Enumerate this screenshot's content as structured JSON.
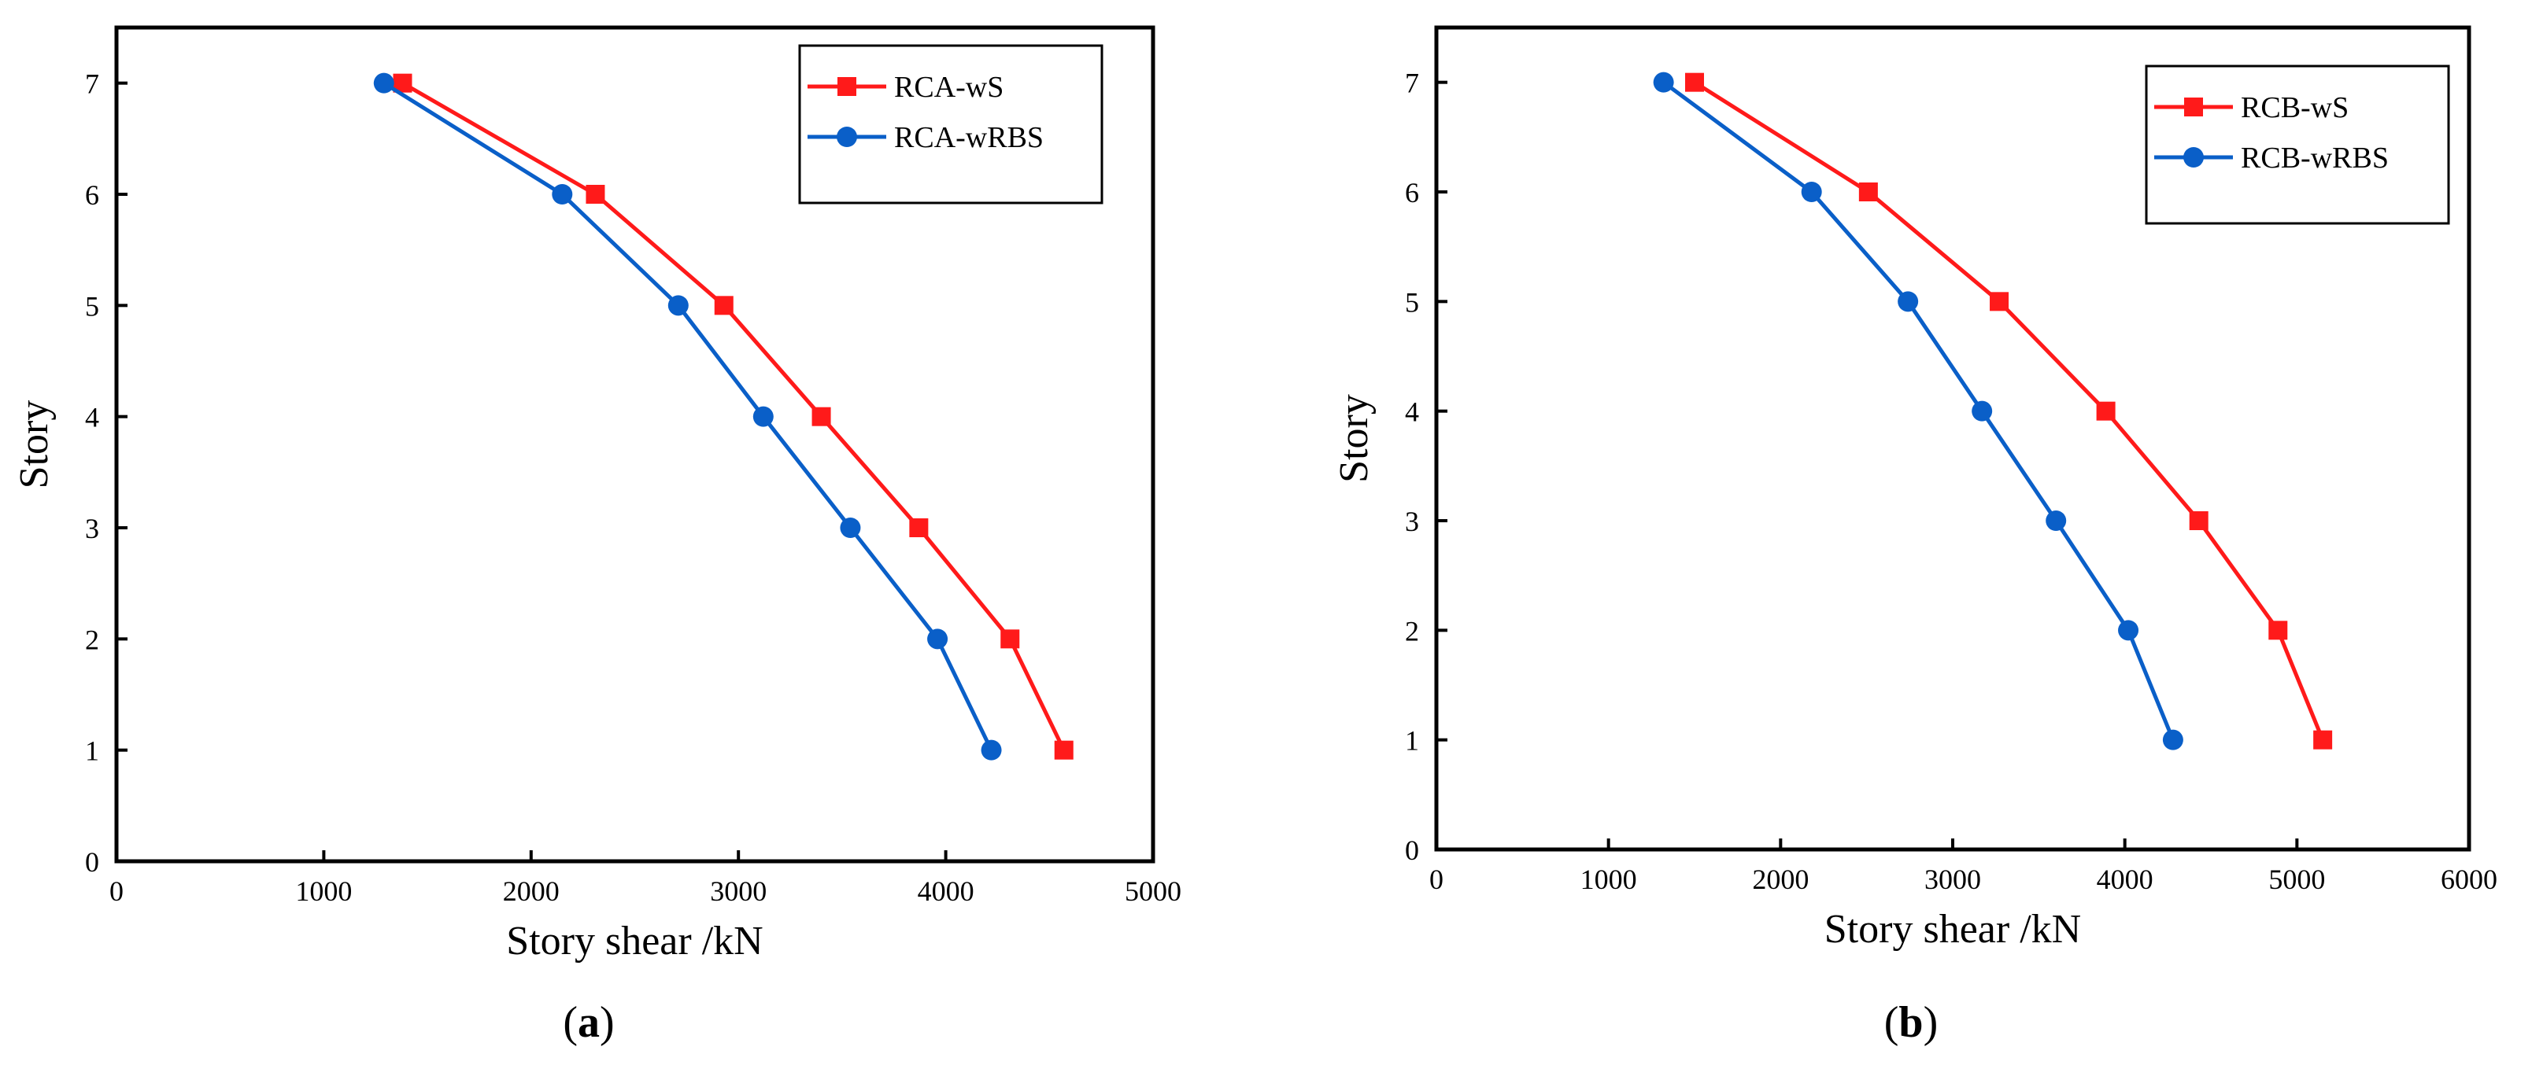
{
  "chart_data": [
    {
      "type": "line",
      "panel_label": "a",
      "xlabel": "Story shear /kN",
      "ylabel": "Story",
      "xlim": [
        0,
        5000
      ],
      "ylim": [
        0,
        7.5
      ],
      "xticks": [
        0,
        1000,
        2000,
        3000,
        4000,
        5000
      ],
      "yticks": [
        0,
        1,
        2,
        3,
        4,
        5,
        6,
        7
      ],
      "legend_position": "top-right",
      "series": [
        {
          "name": "RCA-wS",
          "color": "#ff1a1a",
          "marker": "square",
          "x": [
            4570,
            4310,
            3870,
            3400,
            2930,
            2310,
            1380
          ],
          "y": [
            1,
            2,
            3,
            4,
            5,
            6,
            7
          ]
        },
        {
          "name": "RCA-wRBS",
          "color": "#0a5fc8",
          "marker": "circle",
          "x": [
            4220,
            3960,
            3540,
            3120,
            2710,
            2150,
            1290
          ],
          "y": [
            1,
            2,
            3,
            4,
            5,
            6,
            7
          ]
        }
      ]
    },
    {
      "type": "line",
      "panel_label": "b",
      "xlabel": "Story shear /kN",
      "ylabel": "Story",
      "xlim": [
        0,
        6000
      ],
      "ylim": [
        0,
        7.5
      ],
      "xticks": [
        0,
        1000,
        2000,
        3000,
        4000,
        5000,
        6000
      ],
      "yticks": [
        0,
        1,
        2,
        3,
        4,
        5,
        6,
        7
      ],
      "legend_position": "top-right",
      "series": [
        {
          "name": "RCB-wS",
          "color": "#ff1a1a",
          "marker": "square",
          "x": [
            5150,
            4890,
            4430,
            3890,
            3270,
            2510,
            1500
          ],
          "y": [
            1,
            2,
            3,
            4,
            5,
            6,
            7
          ]
        },
        {
          "name": "RCB-wRBS",
          "color": "#0a5fc8",
          "marker": "circle",
          "x": [
            4280,
            4020,
            3600,
            3170,
            2740,
            2180,
            1320
          ],
          "y": [
            1,
            2,
            3,
            4,
            5,
            6,
            7
          ]
        }
      ]
    }
  ]
}
